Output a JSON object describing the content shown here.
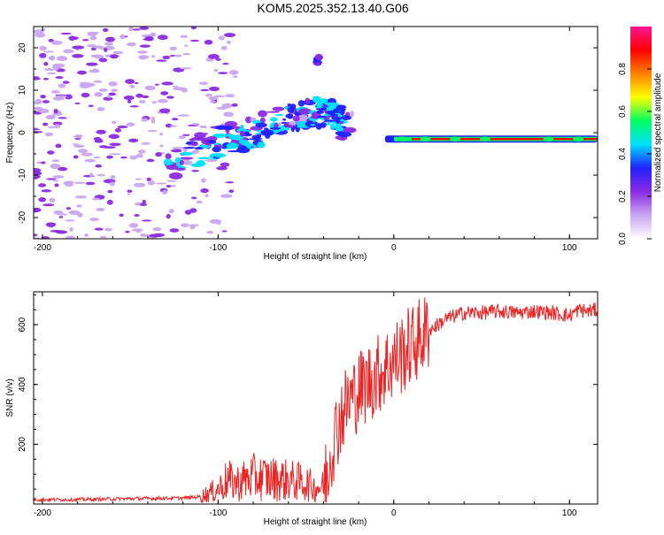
{
  "title": "KOM5.2025.352.13.40.G06",
  "chart_data": [
    {
      "type": "heatmap",
      "xlabel": "Height of straight line (km)",
      "ylabel": "Frequency (Hz)",
      "xlim": [
        -205,
        116
      ],
      "ylim": [
        -25,
        25
      ],
      "xticks": [
        "-200",
        "-100",
        "0",
        "100"
      ],
      "xtick_values": [
        -200,
        -100,
        0,
        100
      ],
      "yticks": [
        "20",
        "10",
        "0",
        "-10",
        "-20"
      ],
      "ytick_values": [
        20,
        10,
        0,
        -10,
        -20
      ],
      "colorbar": {
        "label": "Normalized spectral amplitude",
        "range": [
          0,
          1
        ],
        "ticks": [
          "0.0",
          "0.2",
          "0.4",
          "0.6",
          "0.8"
        ],
        "tick_values": [
          0.0,
          0.2,
          0.4,
          0.6,
          0.8
        ],
        "colors": [
          "#ffffff",
          "#c9a6f2",
          "#8a2be2",
          "#2020ff",
          "#00e0ff",
          "#00ff60",
          "#ffff00",
          "#ff8000",
          "#ff0000",
          "#ff1493"
        ]
      },
      "features": [
        {
          "name": "noise-region",
          "x_range": [
            -205,
            -110
          ],
          "freq_range": [
            -25,
            25
          ],
          "level": 0.05
        },
        {
          "name": "chirp-rise",
          "x": [
            -130,
            -100,
            -80,
            -60,
            -45,
            -35,
            -25
          ],
          "freq": [
            -8,
            -2,
            0,
            3,
            5,
            4,
            1
          ]
        },
        {
          "name": "upper-branch",
          "x": [
            -45,
            -42
          ],
          "freq": [
            16,
            18
          ]
        },
        {
          "name": "carrier-line",
          "x_range": [
            -5,
            116
          ],
          "freq": -1.5,
          "level": 0.9
        }
      ]
    },
    {
      "type": "line",
      "xlabel": "Height of straight line (km)",
      "ylabel": "SNR (v/v)",
      "xlim": [
        -205,
        116
      ],
      "ylim": [
        0,
        710
      ],
      "xticks": [
        "-200",
        "-100",
        "0",
        "100"
      ],
      "xtick_values": [
        -200,
        -100,
        0,
        100
      ],
      "yticks": [
        "200",
        "400",
        "600"
      ],
      "ytick_values": [
        200,
        400,
        600
      ],
      "color": "#ee2222",
      "series": [
        {
          "name": "SNR",
          "x": [
            -205,
            -180,
            -150,
            -120,
            -110,
            -100,
            -95,
            -90,
            -80,
            -70,
            -60,
            -50,
            -45,
            -40,
            -35,
            -30,
            -27,
            -25,
            -20,
            -10,
            0,
            10,
            20,
            30,
            40,
            50,
            60,
            70,
            80,
            90,
            100,
            105,
            110,
            116
          ],
          "y": [
            15,
            15,
            18,
            20,
            25,
            50,
            80,
            70,
            90,
            85,
            80,
            70,
            55,
            60,
            200,
            300,
            330,
            350,
            380,
            430,
            480,
            530,
            580,
            620,
            640,
            640,
            645,
            640,
            645,
            640,
            630,
            650,
            645,
            650
          ]
        }
      ]
    }
  ]
}
